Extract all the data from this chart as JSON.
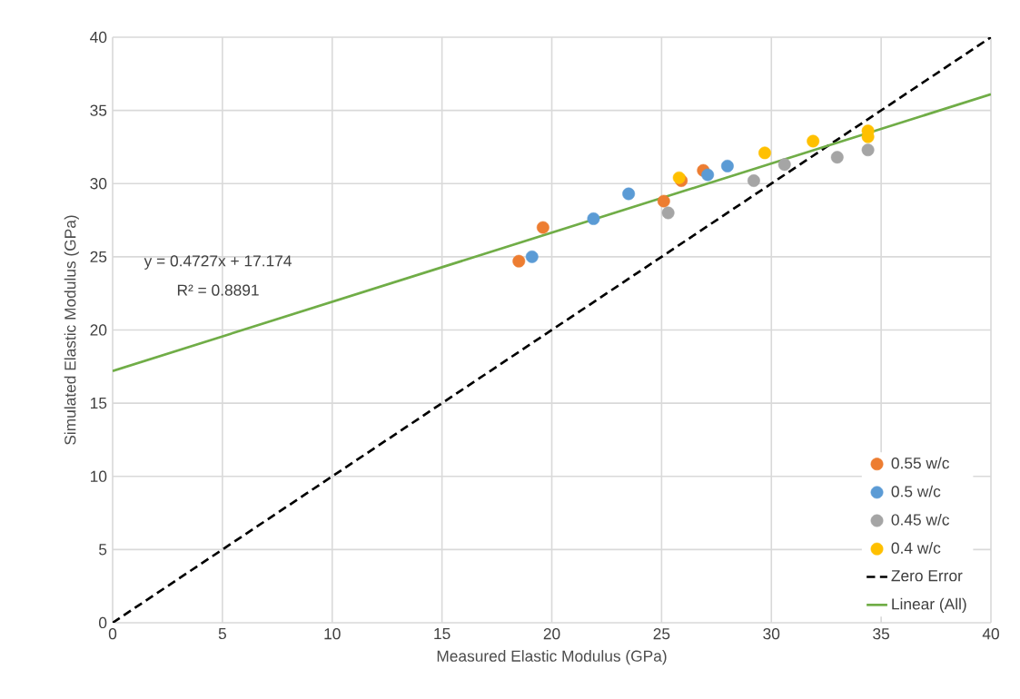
{
  "chart_data": {
    "type": "scatter",
    "xlabel": "Measured Elastic Modulus (GPa)",
    "ylabel": "Simulated Elastic Modulus (GPa)",
    "xlim": [
      0,
      40
    ],
    "ylim": [
      0,
      40
    ],
    "xticks": [
      0,
      5,
      10,
      15,
      20,
      25,
      30,
      35,
      40
    ],
    "yticks": [
      0,
      5,
      10,
      15,
      20,
      25,
      30,
      35,
      40
    ],
    "grid": true,
    "legend": "bottom right",
    "annotations": [
      "y = 0.4727x + 17.174",
      "R² = 0.8891"
    ],
    "series": [
      {
        "name": "0.55 w/c",
        "marker": "circle",
        "color": "#ed7d31",
        "x": [
          18.5,
          19.6,
          25.1,
          25.9,
          26.9
        ],
        "values": [
          24.7,
          27.0,
          28.8,
          30.2,
          30.9
        ]
      },
      {
        "name": "0.5 w/c",
        "marker": "circle",
        "color": "#5b9bd5",
        "x": [
          19.1,
          21.9,
          23.5,
          27.1,
          28.0
        ],
        "values": [
          25.0,
          27.6,
          29.3,
          30.6,
          31.2
        ]
      },
      {
        "name": "0.45 w/c",
        "marker": "circle",
        "color": "#a5a5a5",
        "x": [
          25.3,
          29.2,
          30.6,
          33.0,
          34.4
        ],
        "values": [
          28.0,
          30.2,
          31.3,
          31.8,
          32.3
        ]
      },
      {
        "name": "0.4 w/c",
        "marker": "circle",
        "color": "#ffc000",
        "x": [
          25.8,
          29.7,
          31.9,
          34.4,
          34.4
        ],
        "values": [
          30.4,
          32.1,
          32.9,
          33.6,
          33.2
        ]
      },
      {
        "name": "Zero Error",
        "type": "line",
        "marker": "none",
        "line_style": "dashed",
        "color": "#000000",
        "x": [
          0,
          40
        ],
        "values": [
          0,
          40
        ]
      },
      {
        "name": "Linear (All)",
        "type": "line",
        "marker": "none",
        "line_style": "solid",
        "color": "#70ad47",
        "x": [
          0,
          40
        ],
        "values": [
          17.2,
          36.1
        ]
      }
    ]
  }
}
